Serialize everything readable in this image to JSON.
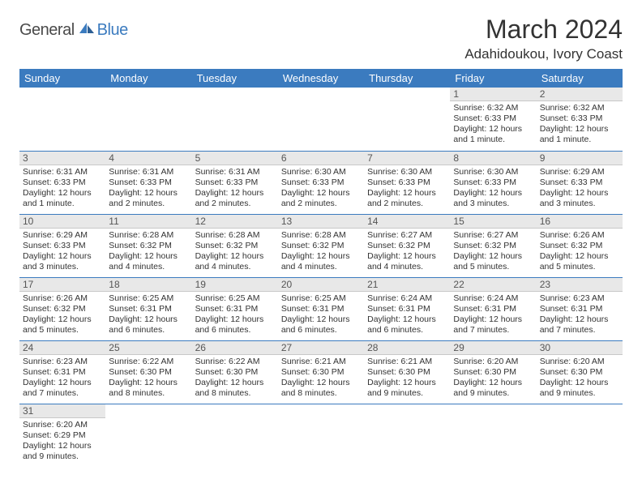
{
  "brand": {
    "general": "General",
    "blue": "Blue"
  },
  "title": "March 2024",
  "location": "Adahidoukou, Ivory Coast",
  "colors": {
    "header_bg": "#3b7bbf",
    "header_text": "#ffffff",
    "daynum_bg": "#e8e8e8",
    "row_divider": "#3b7bbf",
    "body_text": "#333333",
    "logo_gray": "#4a4a4a",
    "logo_blue": "#3b7bbf"
  },
  "typography": {
    "title_fontsize": 32,
    "location_fontsize": 17,
    "weekday_fontsize": 13,
    "daynum_fontsize": 12,
    "cell_fontsize": 10.5
  },
  "weekdays": [
    "Sunday",
    "Monday",
    "Tuesday",
    "Wednesday",
    "Thursday",
    "Friday",
    "Saturday"
  ],
  "weeks": [
    [
      null,
      null,
      null,
      null,
      null,
      {
        "n": "1",
        "sunrise": "Sunrise: 6:32 AM",
        "sunset": "Sunset: 6:33 PM",
        "daylight": "Daylight: 12 hours and 1 minute."
      },
      {
        "n": "2",
        "sunrise": "Sunrise: 6:32 AM",
        "sunset": "Sunset: 6:33 PM",
        "daylight": "Daylight: 12 hours and 1 minute."
      }
    ],
    [
      {
        "n": "3",
        "sunrise": "Sunrise: 6:31 AM",
        "sunset": "Sunset: 6:33 PM",
        "daylight": "Daylight: 12 hours and 1 minute."
      },
      {
        "n": "4",
        "sunrise": "Sunrise: 6:31 AM",
        "sunset": "Sunset: 6:33 PM",
        "daylight": "Daylight: 12 hours and 2 minutes."
      },
      {
        "n": "5",
        "sunrise": "Sunrise: 6:31 AM",
        "sunset": "Sunset: 6:33 PM",
        "daylight": "Daylight: 12 hours and 2 minutes."
      },
      {
        "n": "6",
        "sunrise": "Sunrise: 6:30 AM",
        "sunset": "Sunset: 6:33 PM",
        "daylight": "Daylight: 12 hours and 2 minutes."
      },
      {
        "n": "7",
        "sunrise": "Sunrise: 6:30 AM",
        "sunset": "Sunset: 6:33 PM",
        "daylight": "Daylight: 12 hours and 2 minutes."
      },
      {
        "n": "8",
        "sunrise": "Sunrise: 6:30 AM",
        "sunset": "Sunset: 6:33 PM",
        "daylight": "Daylight: 12 hours and 3 minutes."
      },
      {
        "n": "9",
        "sunrise": "Sunrise: 6:29 AM",
        "sunset": "Sunset: 6:33 PM",
        "daylight": "Daylight: 12 hours and 3 minutes."
      }
    ],
    [
      {
        "n": "10",
        "sunrise": "Sunrise: 6:29 AM",
        "sunset": "Sunset: 6:33 PM",
        "daylight": "Daylight: 12 hours and 3 minutes."
      },
      {
        "n": "11",
        "sunrise": "Sunrise: 6:28 AM",
        "sunset": "Sunset: 6:32 PM",
        "daylight": "Daylight: 12 hours and 4 minutes."
      },
      {
        "n": "12",
        "sunrise": "Sunrise: 6:28 AM",
        "sunset": "Sunset: 6:32 PM",
        "daylight": "Daylight: 12 hours and 4 minutes."
      },
      {
        "n": "13",
        "sunrise": "Sunrise: 6:28 AM",
        "sunset": "Sunset: 6:32 PM",
        "daylight": "Daylight: 12 hours and 4 minutes."
      },
      {
        "n": "14",
        "sunrise": "Sunrise: 6:27 AM",
        "sunset": "Sunset: 6:32 PM",
        "daylight": "Daylight: 12 hours and 4 minutes."
      },
      {
        "n": "15",
        "sunrise": "Sunrise: 6:27 AM",
        "sunset": "Sunset: 6:32 PM",
        "daylight": "Daylight: 12 hours and 5 minutes."
      },
      {
        "n": "16",
        "sunrise": "Sunrise: 6:26 AM",
        "sunset": "Sunset: 6:32 PM",
        "daylight": "Daylight: 12 hours and 5 minutes."
      }
    ],
    [
      {
        "n": "17",
        "sunrise": "Sunrise: 6:26 AM",
        "sunset": "Sunset: 6:32 PM",
        "daylight": "Daylight: 12 hours and 5 minutes."
      },
      {
        "n": "18",
        "sunrise": "Sunrise: 6:25 AM",
        "sunset": "Sunset: 6:31 PM",
        "daylight": "Daylight: 12 hours and 6 minutes."
      },
      {
        "n": "19",
        "sunrise": "Sunrise: 6:25 AM",
        "sunset": "Sunset: 6:31 PM",
        "daylight": "Daylight: 12 hours and 6 minutes."
      },
      {
        "n": "20",
        "sunrise": "Sunrise: 6:25 AM",
        "sunset": "Sunset: 6:31 PM",
        "daylight": "Daylight: 12 hours and 6 minutes."
      },
      {
        "n": "21",
        "sunrise": "Sunrise: 6:24 AM",
        "sunset": "Sunset: 6:31 PM",
        "daylight": "Daylight: 12 hours and 6 minutes."
      },
      {
        "n": "22",
        "sunrise": "Sunrise: 6:24 AM",
        "sunset": "Sunset: 6:31 PM",
        "daylight": "Daylight: 12 hours and 7 minutes."
      },
      {
        "n": "23",
        "sunrise": "Sunrise: 6:23 AM",
        "sunset": "Sunset: 6:31 PM",
        "daylight": "Daylight: 12 hours and 7 minutes."
      }
    ],
    [
      {
        "n": "24",
        "sunrise": "Sunrise: 6:23 AM",
        "sunset": "Sunset: 6:31 PM",
        "daylight": "Daylight: 12 hours and 7 minutes."
      },
      {
        "n": "25",
        "sunrise": "Sunrise: 6:22 AM",
        "sunset": "Sunset: 6:30 PM",
        "daylight": "Daylight: 12 hours and 8 minutes."
      },
      {
        "n": "26",
        "sunrise": "Sunrise: 6:22 AM",
        "sunset": "Sunset: 6:30 PM",
        "daylight": "Daylight: 12 hours and 8 minutes."
      },
      {
        "n": "27",
        "sunrise": "Sunrise: 6:21 AM",
        "sunset": "Sunset: 6:30 PM",
        "daylight": "Daylight: 12 hours and 8 minutes."
      },
      {
        "n": "28",
        "sunrise": "Sunrise: 6:21 AM",
        "sunset": "Sunset: 6:30 PM",
        "daylight": "Daylight: 12 hours and 9 minutes."
      },
      {
        "n": "29",
        "sunrise": "Sunrise: 6:20 AM",
        "sunset": "Sunset: 6:30 PM",
        "daylight": "Daylight: 12 hours and 9 minutes."
      },
      {
        "n": "30",
        "sunrise": "Sunrise: 6:20 AM",
        "sunset": "Sunset: 6:30 PM",
        "daylight": "Daylight: 12 hours and 9 minutes."
      }
    ],
    [
      {
        "n": "31",
        "sunrise": "Sunrise: 6:20 AM",
        "sunset": "Sunset: 6:29 PM",
        "daylight": "Daylight: 12 hours and 9 minutes."
      },
      null,
      null,
      null,
      null,
      null,
      null
    ]
  ]
}
